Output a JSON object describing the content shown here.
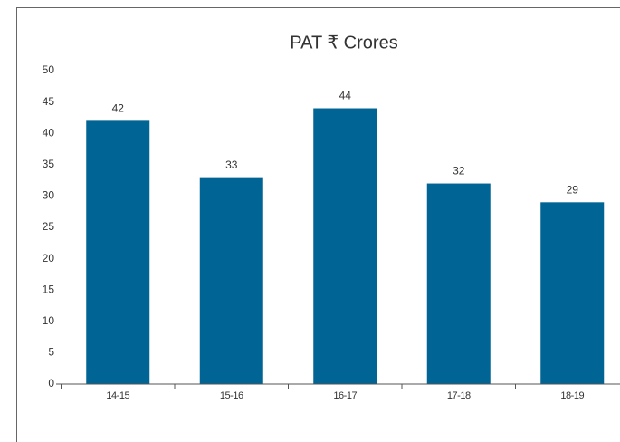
{
  "chart_data": {
    "type": "bar",
    "title": "PAT ₹ Crores",
    "categories": [
      "14-15",
      "15-16",
      "16-17",
      "17-18",
      "18-19"
    ],
    "values": [
      42,
      33,
      44,
      32,
      29
    ],
    "color": "#006494",
    "ylim": [
      0,
      50
    ],
    "yticks": [
      0,
      5,
      10,
      15,
      20,
      25,
      30,
      35,
      40,
      45,
      50
    ],
    "grid": false
  }
}
